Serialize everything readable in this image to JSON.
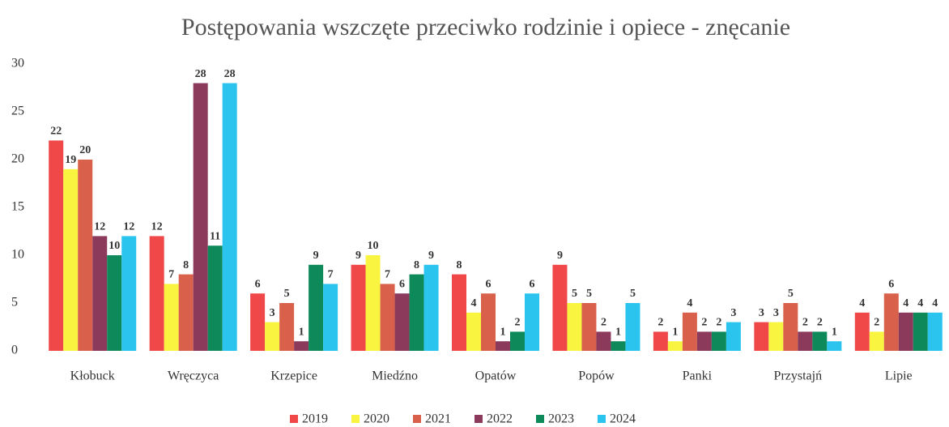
{
  "chart_data": {
    "type": "bar",
    "title": "Postępowania wszczęte przeciwko rodzinie i opiece - znęcanie",
    "categories": [
      "Kłobuck",
      "Wręczyca",
      "Krzepice",
      "Miedźno",
      "Opatów",
      "Popów",
      "Panki",
      "Przystajń",
      "Lipie"
    ],
    "series": [
      {
        "name": "2019",
        "color": "#f04848",
        "values": [
          22,
          12,
          6,
          9,
          8,
          9,
          2,
          3,
          4
        ]
      },
      {
        "name": "2020",
        "color": "#f8f440",
        "values": [
          19,
          7,
          3,
          10,
          4,
          5,
          1,
          3,
          2
        ]
      },
      {
        "name": "2021",
        "color": "#d9604a",
        "values": [
          20,
          8,
          5,
          7,
          6,
          5,
          4,
          5,
          6
        ]
      },
      {
        "name": "2022",
        "color": "#8c3a5c",
        "values": [
          12,
          28,
          1,
          6,
          1,
          2,
          2,
          2,
          4
        ]
      },
      {
        "name": "2023",
        "color": "#0e8a5a",
        "values": [
          10,
          11,
          9,
          8,
          2,
          1,
          2,
          2,
          4
        ]
      },
      {
        "name": "2024",
        "color": "#2ac4ee",
        "values": [
          12,
          28,
          7,
          9,
          6,
          5,
          3,
          1,
          4
        ]
      }
    ],
    "ylim": [
      0,
      30
    ],
    "yticks": [
      0,
      5,
      10,
      15,
      20,
      25,
      30
    ],
    "grid": false,
    "legend": "bottom"
  }
}
